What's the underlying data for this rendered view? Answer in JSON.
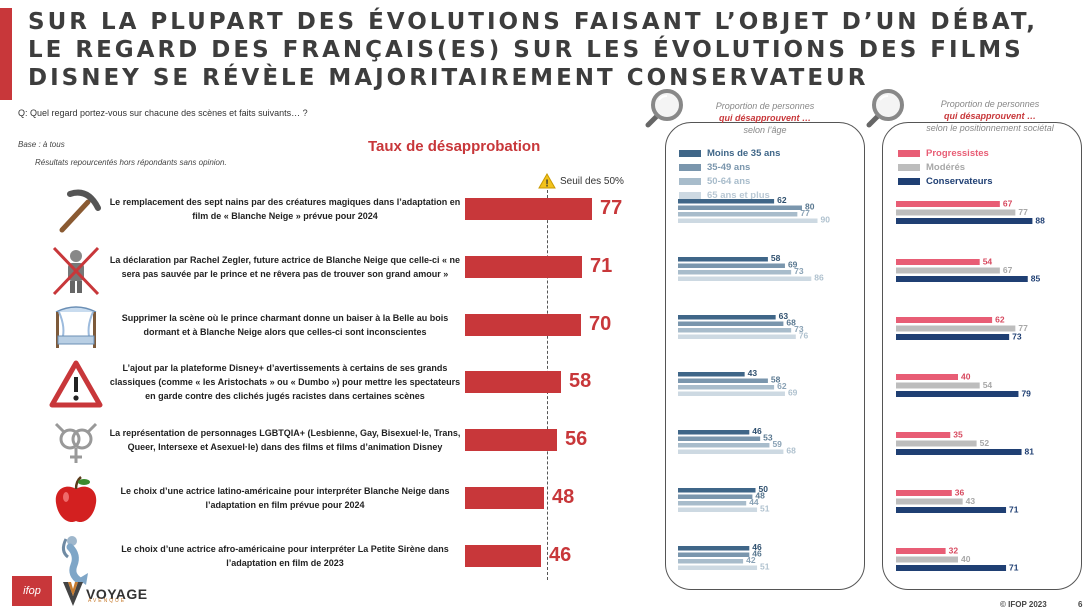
{
  "title": {
    "lines": [
      "SUR LA PLUPART DES ÉVOLUTIONS FAISANT L’OBJET D’UN DÉBAT,",
      "LE REGARD DES FRANÇAIS(ES) SUR LES ÉVOLUTIONS DES FILMS",
      "DISNEY SE RÉVÈLE MAJORITAIREMENT CONSERVATEUR"
    ]
  },
  "question": "Q: Quel regard portez-vous sur chacune des scènes et faits suivants… ?",
  "base": "Base : à tous",
  "note": "Résultats repourcentés hors répondants sans opinion.",
  "colors": {
    "accent": "#c8373a",
    "age_under35": "#3f6688",
    "age_35_49": "#7a96ad",
    "age_50_64": "#a8bccb",
    "age_65plus": "#cdd9e2",
    "progressistes": "#e85d75",
    "moderes": "#bdbdbd",
    "conservateurs": "#1f3f73"
  },
  "chart_data": [
    {
      "type": "bar",
      "title": "Taux de désapprobation",
      "threshold": {
        "label": "Seuil des 50%",
        "value": 50
      },
      "categories": [
        "Le remplacement des sept nains par des créatures magiques dans l’adaptation en film de « Blanche Neige » prévue pour 2024",
        "La déclaration par Rachel Zegler, future actrice de Blanche Neige que celle-ci « ne sera pas sauvée par le prince et ne rêvera pas de trouver son grand amour »",
        "Supprimer la scène où le prince charmant donne un baiser à la Belle au bois dormant et à Blanche Neige alors que celles-ci sont inconscientes",
        "L’ajout par la plateforme Disney+ d’avertissements à certains de ses grands classiques (comme « les Aristochats » ou « Dumbo ») pour mettre les spectateurs en garde contre des clichés jugés racistes dans certaines scènes",
        "La représentation de personnages LGBTQIA+ (Lesbienne, Gay, Bisexuel·le, Trans, Queer, Intersexe et Asexuel·le) dans des films et films d’animation Disney",
        "Le choix d’une actrice latino-américaine pour interpréter Blanche Neige dans l’adaptation en film prévue pour 2024",
        "Le choix d’une actrice afro-américaine pour interpréter La Petite Sirène dans l’adaptation en film de 2023"
      ],
      "icons": [
        "pickaxe-icon",
        "crossed-prince-icon",
        "canopy-bed-icon",
        "warning-icon",
        "gender-symbols-icon",
        "apple-icon",
        "mermaid-icon"
      ],
      "values": [
        77,
        71,
        70,
        58,
        56,
        48,
        46
      ],
      "xlim": [
        0,
        100
      ]
    },
    {
      "type": "bar",
      "title_lines": [
        "Proportion de personnes",
        "qui désapprouvent …",
        "selon l’âge"
      ],
      "series": [
        {
          "name": "Moins de 35 ans",
          "values": [
            62,
            58,
            63,
            43,
            46,
            50,
            46
          ]
        },
        {
          "name": "35-49 ans",
          "values": [
            80,
            69,
            68,
            58,
            53,
            48,
            46
          ]
        },
        {
          "name": "50-64 ans",
          "values": [
            77,
            73,
            73,
            62,
            59,
            44,
            42
          ]
        },
        {
          "name": "65 ans et plus",
          "values": [
            90,
            86,
            76,
            69,
            68,
            51,
            51
          ]
        }
      ],
      "xlim": [
        0,
        100
      ]
    },
    {
      "type": "bar",
      "title_lines": [
        "Proportion de personnes",
        "qui désapprouvent …",
        "selon le positionnement sociétal"
      ],
      "series": [
        {
          "name": "Progressistes",
          "values": [
            67,
            54,
            62,
            40,
            35,
            36,
            32
          ]
        },
        {
          "name": "Modérés",
          "values": [
            77,
            67,
            77,
            54,
            52,
            43,
            40
          ]
        },
        {
          "name": "Conservateurs",
          "values": [
            88,
            85,
            73,
            79,
            81,
            71,
            71
          ]
        }
      ],
      "xlim": [
        0,
        100
      ]
    }
  ],
  "footer": {
    "ifop_logo": "ifop",
    "voyage_logo": "VOYAGE",
    "voyage_sub": "AVENQUE",
    "copyright": "© IFOP 2023",
    "page": "6"
  }
}
